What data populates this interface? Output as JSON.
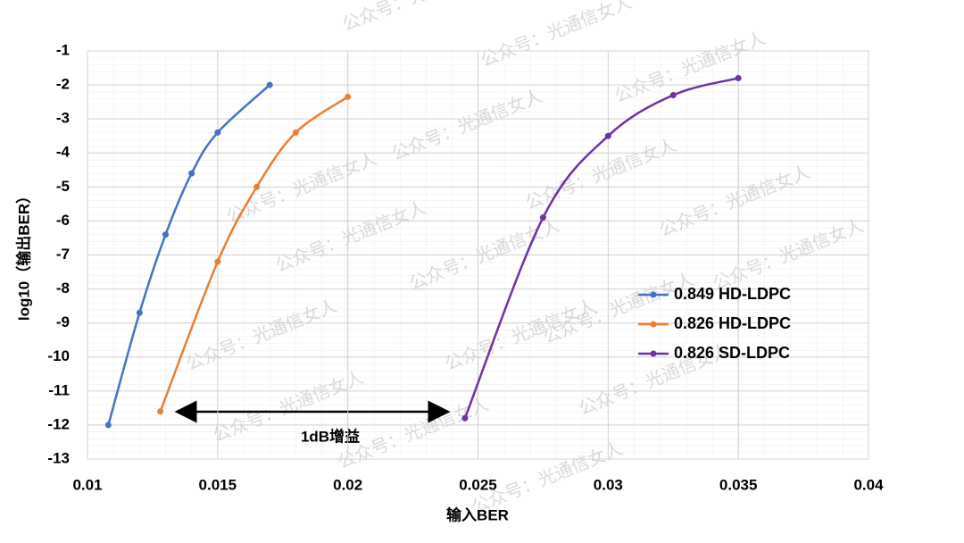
{
  "chart_data": {
    "type": "line",
    "x_label": "输入BER",
    "y_label": "log10（输出BER）",
    "xlim": [
      0.01,
      0.04
    ],
    "xticks": [
      0.01,
      0.015,
      0.02,
      0.025,
      0.03,
      0.035,
      0.04
    ],
    "ylim": [
      -13,
      -1
    ],
    "yticks": [
      -1,
      -2,
      -3,
      -4,
      -5,
      -6,
      -7,
      -8,
      -9,
      -10,
      -11,
      -12,
      -13
    ],
    "grid": true,
    "legend": "right",
    "smooth": true,
    "series": [
      {
        "name": "0.849 HD-LDPC",
        "color": "#4472c4",
        "x": [
          0.0108,
          0.012,
          0.013,
          0.014,
          0.015,
          0.017
        ],
        "values": [
          -12,
          -8.7,
          -6.4,
          -4.6,
          -3.4,
          -2.0
        ]
      },
      {
        "name": "0.826 HD-LDPC",
        "color": "#ed7d31",
        "x": [
          0.0128,
          0.015,
          0.0165,
          0.018,
          0.02
        ],
        "values": [
          -11.6,
          -7.2,
          -5.0,
          -3.4,
          -2.35
        ]
      },
      {
        "name": "0.826 SD-LDPC",
        "color": "#7030a0",
        "x": [
          0.0245,
          0.0275,
          0.03,
          0.0325,
          0.035
        ],
        "values": [
          -11.8,
          -5.9,
          -3.5,
          -2.3,
          -1.8
        ]
      }
    ],
    "annotation": "1dB增益",
    "watermark": "公众号：光通信女人"
  }
}
